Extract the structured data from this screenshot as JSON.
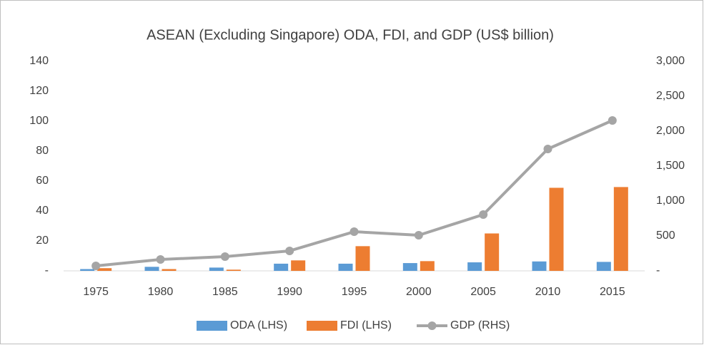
{
  "chart_data": {
    "type": "bar_line",
    "title": "ASEAN (Excluding Singapore) ODA, FDI, and GDP (US$ billion)",
    "categories": [
      "1975",
      "1980",
      "1985",
      "1990",
      "1995",
      "2000",
      "2005",
      "2010",
      "2015"
    ],
    "series": [
      {
        "name": "ODA (LHS)",
        "type": "bar",
        "color": "#5b9bd5",
        "values": [
          1.2,
          2.7,
          2.2,
          4.8,
          4.8,
          5.2,
          5.7,
          6.3,
          6.0
        ]
      },
      {
        "name": "FDI (LHS)",
        "type": "bar",
        "color": "#ed7d31",
        "values": [
          1.8,
          1.2,
          0.8,
          7.0,
          16.5,
          6.5,
          25.0,
          55.5,
          56.0
        ]
      },
      {
        "name": "GDP (RHS)",
        "type": "line",
        "axis": "y2",
        "color": "#a5a5a5",
        "values": [
          71,
          163,
          204,
          286,
          561,
          510,
          806,
          1745,
          2153
        ]
      }
    ],
    "ylim": [
      0,
      140
    ],
    "yticks": [
      {
        "value": 0,
        "label": "-"
      },
      20,
      40,
      60,
      80,
      100,
      120,
      140
    ],
    "y2lim": [
      0,
      3000
    ],
    "y2ticks": [
      {
        "value": 0,
        "label": "-"
      },
      500,
      {
        "value": 1000,
        "label": "1,000"
      },
      {
        "value": 1500,
        "label": "1,500"
      },
      {
        "value": 2000,
        "label": "2,000"
      },
      {
        "value": 2500,
        "label": "2,500"
      },
      {
        "value": 3000,
        "label": "3,000"
      }
    ],
    "legend": "bottom",
    "grid": false
  }
}
